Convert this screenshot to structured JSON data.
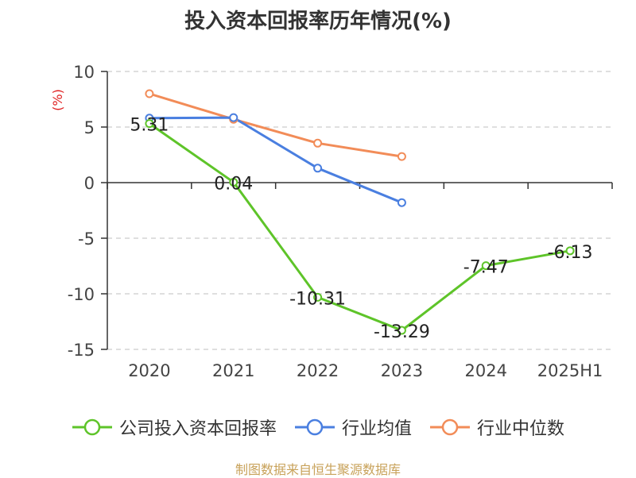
{
  "chart_data": {
    "type": "line",
    "title": "投入资本回报率历年情况(%)",
    "ylabel": "(%)",
    "xlabel": "",
    "categories": [
      "2020",
      "2021",
      "2022",
      "2023",
      "2024",
      "2025H1"
    ],
    "ylim": [
      -15,
      10
    ],
    "yticks": [
      10,
      5,
      0,
      -5,
      -10,
      -15
    ],
    "grid": true,
    "legend_position": "bottom",
    "series": [
      {
        "name": "公司投入资本回报率",
        "color": "#5ec429",
        "values": [
          5.31,
          0.04,
          -10.31,
          -13.29,
          -7.47,
          -6.13
        ],
        "labels": [
          "5.31",
          "0.04",
          "-10.31",
          "-13.29",
          "-7.47",
          "-6.13"
        ]
      },
      {
        "name": "行业均值",
        "color": "#4a7fe0",
        "values": [
          5.8,
          5.85,
          1.3,
          -1.8,
          null,
          null
        ]
      },
      {
        "name": "行业中位数",
        "color": "#f28c58",
        "values": [
          8.0,
          5.7,
          3.55,
          2.35,
          null,
          null
        ]
      }
    ]
  },
  "source": "制图数据来自恒生聚源数据库"
}
